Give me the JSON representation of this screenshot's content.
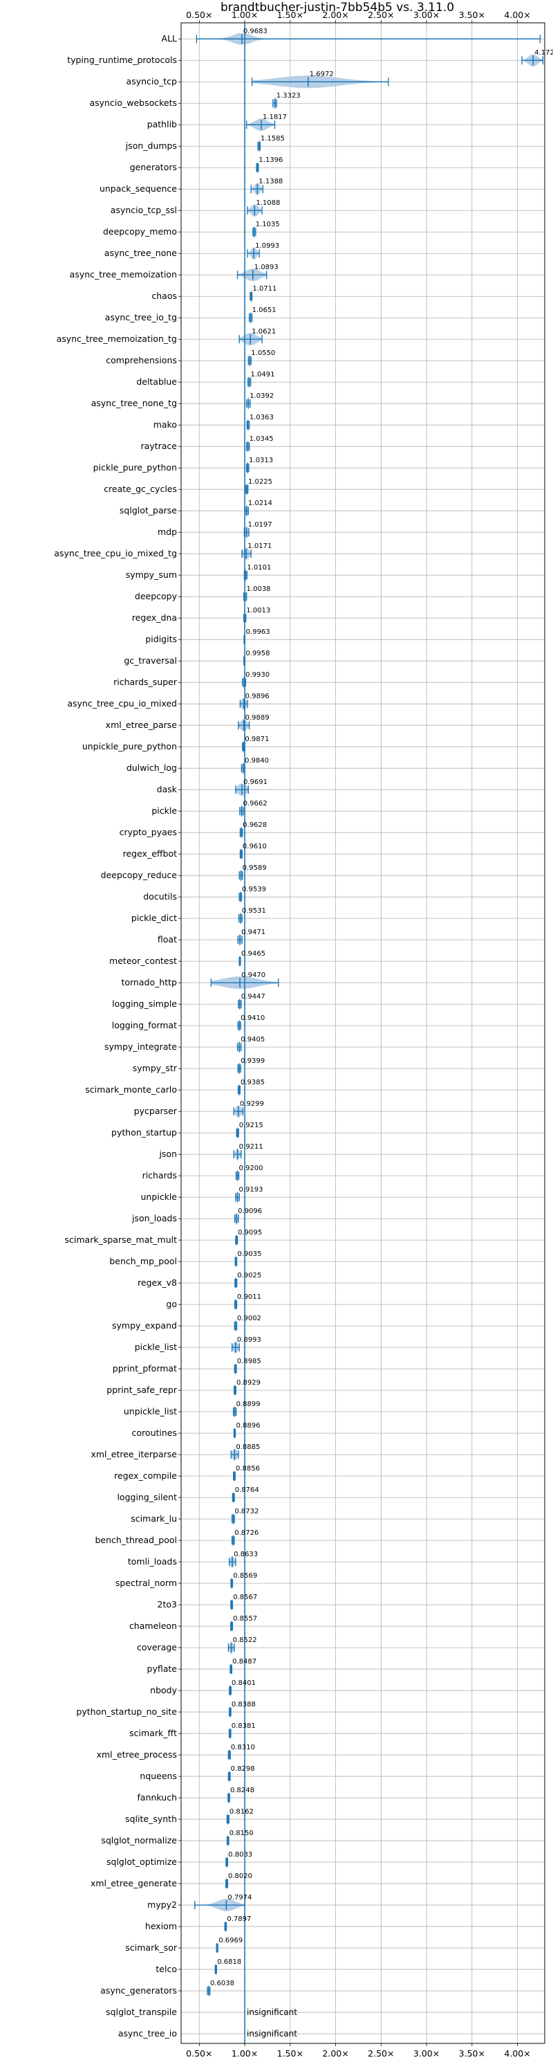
{
  "chart_data": {
    "type": "violin",
    "title": "brandtbucher-justin-7bb54b5 vs. 3.11.0",
    "xlabel": "",
    "ylabel": "",
    "xlim": [
      0.3,
      4.3
    ],
    "x_ticks": [
      0.5,
      1.0,
      1.5,
      2.0,
      2.5,
      3.0,
      3.5,
      4.0
    ],
    "x_tick_labels": [
      "0.50×",
      "1.00×",
      "1.50×",
      "2.00×",
      "2.50×",
      "3.00×",
      "3.50×",
      "4.00×"
    ],
    "x_tick_labels_top": [
      "0.50×",
      "1.00×",
      "1.50×",
      "2.00×",
      "2.50×",
      "3.00×",
      "3.50×",
      "4.00×"
    ],
    "reference_line": 1.0,
    "grid": true,
    "benchmarks": [
      {
        "name": "ALL",
        "value": "0.9683",
        "mean": 0.9683,
        "min": 0.47,
        "max": 4.25,
        "spread": 0.1,
        "lineColor": "#1f77b4"
      },
      {
        "name": "typing_runtime_protocols",
        "value": "4.1721",
        "mean": 4.1721,
        "min": 4.05,
        "max": 4.28,
        "spread": 0.05
      },
      {
        "name": "asyncio_tcp",
        "value": "1.6972",
        "mean": 1.6972,
        "min": 1.08,
        "max": 2.58,
        "spread": 0.35
      },
      {
        "name": "asyncio_websockets",
        "value": "1.3323",
        "mean": 1.3323,
        "min": 1.31,
        "max": 1.35,
        "spread": 0.01
      },
      {
        "name": "pathlib",
        "value": "1.1817",
        "mean": 1.1817,
        "min": 1.02,
        "max": 1.33,
        "spread": 0.07
      },
      {
        "name": "json_dumps",
        "value": "1.1585",
        "mean": 1.1585,
        "min": 1.145,
        "max": 1.17,
        "spread": 0.01
      },
      {
        "name": "generators",
        "value": "1.1396",
        "mean": 1.1396,
        "min": 1.13,
        "max": 1.15,
        "spread": 0.005
      },
      {
        "name": "unpack_sequence",
        "value": "1.1388",
        "mean": 1.1388,
        "min": 1.07,
        "max": 1.2,
        "spread": 0.03
      },
      {
        "name": "asyncio_tcp_ssl",
        "value": "1.1088",
        "mean": 1.1088,
        "min": 1.03,
        "max": 1.19,
        "spread": 0.04
      },
      {
        "name": "deepcopy_memo",
        "value": "1.1035",
        "mean": 1.1035,
        "min": 1.09,
        "max": 1.12,
        "spread": 0.01
      },
      {
        "name": "async_tree_none",
        "value": "1.0993",
        "mean": 1.0993,
        "min": 1.03,
        "max": 1.16,
        "spread": 0.03
      },
      {
        "name": "async_tree_memoization",
        "value": "1.0893",
        "mean": 1.0893,
        "min": 0.92,
        "max": 1.24,
        "spread": 0.08
      },
      {
        "name": "chaos",
        "value": "1.0711",
        "mean": 1.0711,
        "min": 1.06,
        "max": 1.08,
        "spread": 0.005
      },
      {
        "name": "async_tree_io_tg",
        "value": "1.0651",
        "mean": 1.0651,
        "min": 1.05,
        "max": 1.08,
        "spread": 0.01
      },
      {
        "name": "async_tree_memoization_tg",
        "value": "1.0621",
        "mean": 1.0621,
        "min": 0.94,
        "max": 1.19,
        "spread": 0.07
      },
      {
        "name": "comprehensions",
        "value": "1.0550",
        "mean": 1.055,
        "min": 1.04,
        "max": 1.07,
        "spread": 0.01
      },
      {
        "name": "deltablue",
        "value": "1.0491",
        "mean": 1.0491,
        "min": 1.035,
        "max": 1.065,
        "spread": 0.01
      },
      {
        "name": "async_tree_none_tg",
        "value": "1.0392",
        "mean": 1.0392,
        "min": 1.02,
        "max": 1.06,
        "spread": 0.01
      },
      {
        "name": "mako",
        "value": "1.0363",
        "mean": 1.0363,
        "min": 1.025,
        "max": 1.05,
        "spread": 0.01
      },
      {
        "name": "raytrace",
        "value": "1.0345",
        "mean": 1.0345,
        "min": 1.02,
        "max": 1.05,
        "spread": 0.01
      },
      {
        "name": "pickle_pure_python",
        "value": "1.0313",
        "mean": 1.0313,
        "min": 1.02,
        "max": 1.045,
        "spread": 0.01
      },
      {
        "name": "create_gc_cycles",
        "value": "1.0225",
        "mean": 1.0225,
        "min": 1.01,
        "max": 1.035,
        "spread": 0.01
      },
      {
        "name": "sqlglot_parse",
        "value": "1.0214",
        "mean": 1.0214,
        "min": 1.005,
        "max": 1.04,
        "spread": 0.01
      },
      {
        "name": "mdp",
        "value": "1.0197",
        "mean": 1.0197,
        "min": 0.995,
        "max": 1.045,
        "spread": 0.015
      },
      {
        "name": "async_tree_cpu_io_mixed_tg",
        "value": "1.0171",
        "mean": 1.0171,
        "min": 0.97,
        "max": 1.07,
        "spread": 0.03
      },
      {
        "name": "sympy_sum",
        "value": "1.0101",
        "mean": 1.0101,
        "min": 0.995,
        "max": 1.025,
        "spread": 0.01
      },
      {
        "name": "deepcopy",
        "value": "1.0038",
        "mean": 1.0038,
        "min": 0.99,
        "max": 1.02,
        "spread": 0.01
      },
      {
        "name": "regex_dna",
        "value": "1.0013",
        "mean": 1.0013,
        "min": 0.99,
        "max": 1.012,
        "spread": 0.005
      },
      {
        "name": "pidigits",
        "value": "0.9963",
        "mean": 0.9963,
        "min": 0.992,
        "max": 1.0,
        "spread": 0.003
      },
      {
        "name": "gc_traversal",
        "value": "0.9958",
        "mean": 0.9958,
        "min": 0.99,
        "max": 1.0,
        "spread": 0.003
      },
      {
        "name": "richards_super",
        "value": "0.9930",
        "mean": 0.993,
        "min": 0.975,
        "max": 1.01,
        "spread": 0.01
      },
      {
        "name": "async_tree_cpu_io_mixed",
        "value": "0.9896",
        "mean": 0.9896,
        "min": 0.95,
        "max": 1.03,
        "spread": 0.025
      },
      {
        "name": "xml_etree_parse",
        "value": "0.9889",
        "mean": 0.9889,
        "min": 0.93,
        "max": 1.05,
        "spread": 0.035
      },
      {
        "name": "unpickle_pure_python",
        "value": "0.9871",
        "mean": 0.9871,
        "min": 0.975,
        "max": 1.0,
        "spread": 0.01
      },
      {
        "name": "dulwich_log",
        "value": "0.9840",
        "mean": 0.984,
        "min": 0.965,
        "max": 1.0,
        "spread": 0.01
      },
      {
        "name": "dask",
        "value": "0.9691",
        "mean": 0.9691,
        "min": 0.9,
        "max": 1.04,
        "spread": 0.05
      },
      {
        "name": "pickle",
        "value": "0.9662",
        "mean": 0.9662,
        "min": 0.945,
        "max": 0.985,
        "spread": 0.012
      },
      {
        "name": "crypto_pyaes",
        "value": "0.9628",
        "mean": 0.9628,
        "min": 0.95,
        "max": 0.975,
        "spread": 0.008
      },
      {
        "name": "regex_effbot",
        "value": "0.9610",
        "mean": 0.961,
        "min": 0.95,
        "max": 0.972,
        "spread": 0.006
      },
      {
        "name": "deepcopy_reduce",
        "value": "0.9589",
        "mean": 0.9589,
        "min": 0.94,
        "max": 0.975,
        "spread": 0.01
      },
      {
        "name": "docutils",
        "value": "0.9539",
        "mean": 0.9539,
        "min": 0.94,
        "max": 0.965,
        "spread": 0.008
      },
      {
        "name": "pickle_dict",
        "value": "0.9531",
        "mean": 0.9531,
        "min": 0.935,
        "max": 0.97,
        "spread": 0.01
      },
      {
        "name": "float",
        "value": "0.9471",
        "mean": 0.9471,
        "min": 0.925,
        "max": 0.97,
        "spread": 0.012
      },
      {
        "name": "meteor_contest",
        "value": "0.9465",
        "mean": 0.9465,
        "min": 0.94,
        "max": 0.953,
        "spread": 0.004
      },
      {
        "name": "tornado_http",
        "value": "0.9470",
        "mean": 0.947,
        "min": 0.63,
        "max": 1.37,
        "spread": 0.2
      },
      {
        "name": "logging_simple",
        "value": "0.9447",
        "mean": 0.9447,
        "min": 0.93,
        "max": 0.96,
        "spread": 0.008
      },
      {
        "name": "logging_format",
        "value": "0.9410",
        "mean": 0.941,
        "min": 0.925,
        "max": 0.955,
        "spread": 0.008
      },
      {
        "name": "sympy_integrate",
        "value": "0.9405",
        "mean": 0.9405,
        "min": 0.92,
        "max": 0.96,
        "spread": 0.01
      },
      {
        "name": "sympy_str",
        "value": "0.9399",
        "mean": 0.9399,
        "min": 0.925,
        "max": 0.955,
        "spread": 0.008
      },
      {
        "name": "scimark_monte_carlo",
        "value": "0.9385",
        "mean": 0.9385,
        "min": 0.928,
        "max": 0.948,
        "spread": 0.006
      },
      {
        "name": "pycparser",
        "value": "0.9299",
        "mean": 0.9299,
        "min": 0.88,
        "max": 0.98,
        "spread": 0.03
      },
      {
        "name": "python_startup",
        "value": "0.9215",
        "mean": 0.9215,
        "min": 0.91,
        "max": 0.932,
        "spread": 0.006
      },
      {
        "name": "json",
        "value": "0.9211",
        "mean": 0.9211,
        "min": 0.88,
        "max": 0.96,
        "spread": 0.02
      },
      {
        "name": "richards",
        "value": "0.9200",
        "mean": 0.92,
        "min": 0.905,
        "max": 0.935,
        "spread": 0.008
      },
      {
        "name": "unpickle",
        "value": "0.9193",
        "mean": 0.9193,
        "min": 0.9,
        "max": 0.94,
        "spread": 0.01
      },
      {
        "name": "json_loads",
        "value": "0.9096",
        "mean": 0.9096,
        "min": 0.89,
        "max": 0.93,
        "spread": 0.012
      },
      {
        "name": "scimark_sparse_mat_mult",
        "value": "0.9095",
        "mean": 0.9095,
        "min": 0.9,
        "max": 0.92,
        "spread": 0.005
      },
      {
        "name": "bench_mp_pool",
        "value": "0.9035",
        "mean": 0.9035,
        "min": 0.895,
        "max": 0.912,
        "spread": 0.005
      },
      {
        "name": "regex_v8",
        "value": "0.9025",
        "mean": 0.9025,
        "min": 0.892,
        "max": 0.913,
        "spread": 0.005
      },
      {
        "name": "go",
        "value": "0.9011",
        "mean": 0.9011,
        "min": 0.89,
        "max": 0.912,
        "spread": 0.006
      },
      {
        "name": "sympy_expand",
        "value": "0.9002",
        "mean": 0.9002,
        "min": 0.888,
        "max": 0.912,
        "spread": 0.006
      },
      {
        "name": "pickle_list",
        "value": "0.8993",
        "mean": 0.8993,
        "min": 0.86,
        "max": 0.94,
        "spread": 0.025
      },
      {
        "name": "pprint_pformat",
        "value": "0.8985",
        "mean": 0.8985,
        "min": 0.888,
        "max": 0.908,
        "spread": 0.005
      },
      {
        "name": "pprint_safe_repr",
        "value": "0.8929",
        "mean": 0.8929,
        "min": 0.883,
        "max": 0.903,
        "spread": 0.005
      },
      {
        "name": "unpickle_list",
        "value": "0.8899",
        "mean": 0.8899,
        "min": 0.875,
        "max": 0.905,
        "spread": 0.008
      },
      {
        "name": "coroutines",
        "value": "0.8896",
        "mean": 0.8896,
        "min": 0.882,
        "max": 0.897,
        "spread": 0.004
      },
      {
        "name": "xml_etree_iterparse",
        "value": "0.8885",
        "mean": 0.8885,
        "min": 0.85,
        "max": 0.93,
        "spread": 0.025
      },
      {
        "name": "regex_compile",
        "value": "0.8856",
        "mean": 0.8856,
        "min": 0.876,
        "max": 0.895,
        "spread": 0.005
      },
      {
        "name": "logging_silent",
        "value": "0.8764",
        "mean": 0.8764,
        "min": 0.866,
        "max": 0.886,
        "spread": 0.005
      },
      {
        "name": "scimark_lu",
        "value": "0.8732",
        "mean": 0.8732,
        "min": 0.86,
        "max": 0.887,
        "spread": 0.007
      },
      {
        "name": "bench_thread_pool",
        "value": "0.8726",
        "mean": 0.8726,
        "min": 0.86,
        "max": 0.885,
        "spread": 0.007
      },
      {
        "name": "tomli_loads",
        "value": "0.8633",
        "mean": 0.8633,
        "min": 0.83,
        "max": 0.9,
        "spread": 0.02
      },
      {
        "name": "spectral_norm",
        "value": "0.8569",
        "mean": 0.8569,
        "min": 0.848,
        "max": 0.866,
        "spread": 0.005
      },
      {
        "name": "2to3",
        "value": "0.8567",
        "mean": 0.8567,
        "min": 0.847,
        "max": 0.866,
        "spread": 0.005
      },
      {
        "name": "chameleon",
        "value": "0.8557",
        "mean": 0.8557,
        "min": 0.845,
        "max": 0.866,
        "spread": 0.006
      },
      {
        "name": "coverage",
        "value": "0.8522",
        "mean": 0.8522,
        "min": 0.82,
        "max": 0.885,
        "spread": 0.018
      },
      {
        "name": "pyflate",
        "value": "0.8487",
        "mean": 0.8487,
        "min": 0.84,
        "max": 0.858,
        "spread": 0.005
      },
      {
        "name": "nbody",
        "value": "0.8401",
        "mean": 0.8401,
        "min": 0.83,
        "max": 0.85,
        "spread": 0.005
      },
      {
        "name": "python_startup_no_site",
        "value": "0.8388",
        "mean": 0.8388,
        "min": 0.83,
        "max": 0.848,
        "spread": 0.005
      },
      {
        "name": "scimark_fft",
        "value": "0.8381",
        "mean": 0.8381,
        "min": 0.829,
        "max": 0.847,
        "spread": 0.005
      },
      {
        "name": "xml_etree_process",
        "value": "0.8310",
        "mean": 0.831,
        "min": 0.82,
        "max": 0.842,
        "spread": 0.006
      },
      {
        "name": "nqueens",
        "value": "0.8298",
        "mean": 0.8298,
        "min": 0.82,
        "max": 0.84,
        "spread": 0.005
      },
      {
        "name": "fannkuch",
        "value": "0.8248",
        "mean": 0.8248,
        "min": 0.816,
        "max": 0.834,
        "spread": 0.005
      },
      {
        "name": "sqlite_synth",
        "value": "0.8162",
        "mean": 0.8162,
        "min": 0.805,
        "max": 0.827,
        "spread": 0.006
      },
      {
        "name": "sqlglot_normalize",
        "value": "0.8150",
        "mean": 0.815,
        "min": 0.806,
        "max": 0.824,
        "spread": 0.005
      },
      {
        "name": "sqlglot_optimize",
        "value": "0.8033",
        "mean": 0.8033,
        "min": 0.794,
        "max": 0.812,
        "spread": 0.005
      },
      {
        "name": "xml_etree_generate",
        "value": "0.8020",
        "mean": 0.802,
        "min": 0.792,
        "max": 0.812,
        "spread": 0.005
      },
      {
        "name": "mypy2",
        "value": "0.7974",
        "mean": 0.7974,
        "min": 0.45,
        "max": 1.0,
        "spread": 0.1
      },
      {
        "name": "hexiom",
        "value": "0.7897",
        "mean": 0.7897,
        "min": 0.781,
        "max": 0.798,
        "spread": 0.004
      },
      {
        "name": "scimark_sor",
        "value": "0.6969",
        "mean": 0.6969,
        "min": 0.69,
        "max": 0.704,
        "spread": 0.004
      },
      {
        "name": "telco",
        "value": "0.6818",
        "mean": 0.6818,
        "min": 0.675,
        "max": 0.69,
        "spread": 0.004
      },
      {
        "name": "async_generators",
        "value": "0.6038",
        "mean": 0.6038,
        "min": 0.59,
        "max": 0.617,
        "spread": 0.005
      },
      {
        "name": "sqlglot_transpile",
        "value": "insignificant",
        "mean": null
      },
      {
        "name": "async_tree_io",
        "value": "insignificant",
        "mean": null
      }
    ]
  },
  "colors": {
    "violin_fill": "#a9c7e3",
    "line": "#1f77b4",
    "grid": "#b0b0b0",
    "axis": "#000000"
  }
}
